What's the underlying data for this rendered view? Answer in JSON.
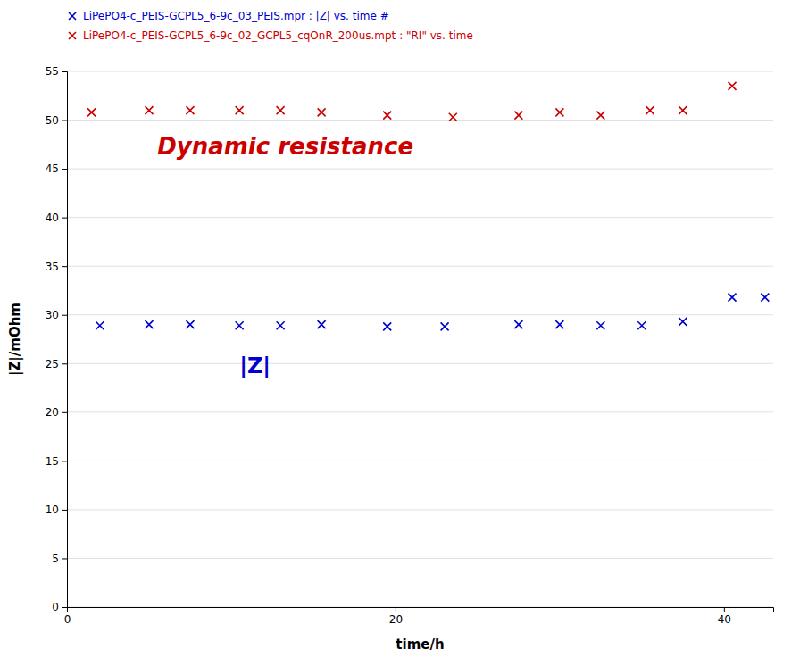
{
  "chart_data": {
    "type": "scatter",
    "xlabel": "time/h",
    "ylabel": "|Z|/mOhm",
    "xlim": [
      0,
      43
    ],
    "ylim": [
      0,
      55
    ],
    "xticks": [
      0,
      20,
      40
    ],
    "yticks": [
      0,
      5,
      10,
      15,
      20,
      25,
      30,
      35,
      40,
      45,
      50,
      55
    ],
    "grid": true,
    "legend": "top left",
    "marker": "x",
    "series": [
      {
        "name": "LiPePO4-c_PEIS-GCPL5_6-9c_03_PEIS.mpr : |Z| vs. time #",
        "color": "#0000cd",
        "x": [
          2.0,
          5.0,
          7.5,
          10.5,
          13.0,
          15.5,
          19.5,
          23.0,
          27.5,
          30.0,
          32.5,
          35.0,
          37.5,
          40.5,
          42.5
        ],
        "values": [
          28.9,
          29.0,
          29.0,
          28.9,
          28.9,
          29.0,
          28.8,
          28.8,
          29.0,
          29.0,
          28.9,
          28.9,
          29.3,
          31.8,
          31.8
        ]
      },
      {
        "name": "LiPePO4-c_PEIS-GCPL5_6-9c_02_GCPL5_cqOnR_200us.mpt : \"RI\" vs. time",
        "color": "#cc0000",
        "x": [
          1.5,
          5.0,
          7.5,
          10.5,
          13.0,
          15.5,
          19.5,
          23.5,
          27.5,
          30.0,
          32.5,
          35.5,
          37.5,
          40.5
        ],
        "values": [
          50.8,
          51.0,
          51.0,
          51.0,
          51.0,
          50.8,
          50.5,
          50.3,
          50.5,
          50.8,
          50.5,
          51.0,
          51.0,
          53.5
        ]
      }
    ],
    "annotations": [
      {
        "text": "Dynamic resistance",
        "x": 5.5,
        "y": 46.5,
        "color": "#cc0000"
      },
      {
        "text": "|Z|",
        "x": 10.5,
        "y": 24.0,
        "color": "#0000cd"
      }
    ]
  }
}
